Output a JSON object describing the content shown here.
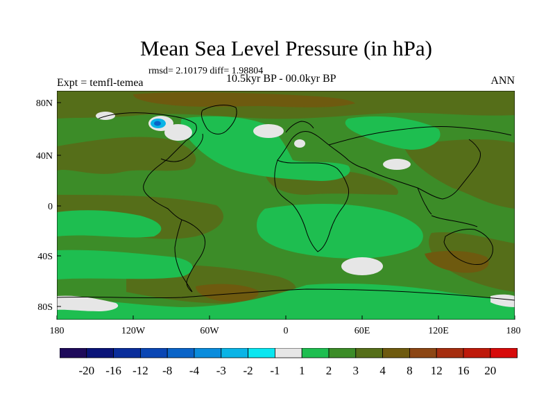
{
  "title": "Mean Sea Level Pressure (in hPa)",
  "stats": "rmsd= 2.10179 diff= 1.98804",
  "experiment": "Expt = temfl-temea",
  "period": "10.5kyr BP - 00.0kyr BP",
  "season": "ANN",
  "lat_ticks": [
    "80N",
    "40N",
    "0",
    "40S",
    "80S"
  ],
  "lon_ticks": [
    "180",
    "120W",
    "60W",
    "0",
    "60E",
    "120E",
    "180"
  ],
  "colorbar": {
    "labels": [
      "-20",
      "-16",
      "-12",
      "-8",
      "-4",
      "-3",
      "-2",
      "-1",
      "1",
      "2",
      "3",
      "4",
      "8",
      "12",
      "16",
      "20"
    ],
    "colors": [
      "#1e0a5a",
      "#0a1478",
      "#0a2d9b",
      "#0a46b4",
      "#0a64c8",
      "#0a8cdc",
      "#0ab4e6",
      "#0ae6f0",
      "#e6e6e6",
      "#1ebe50",
      "#3c8c28",
      "#556e19",
      "#6e5a0f",
      "#8c4614",
      "#a52d0f",
      "#be190a",
      "#d70a0a"
    ]
  },
  "field_colors": {
    "ocean_base": "#3c8c28",
    "band_2": "#1ebe50",
    "band_4": "#556e19",
    "band_8": "#6e5a0f",
    "near_zero": "#e6e6e6",
    "neg_2": "#0ab4e6",
    "neg_4": "#0a64c8"
  }
}
